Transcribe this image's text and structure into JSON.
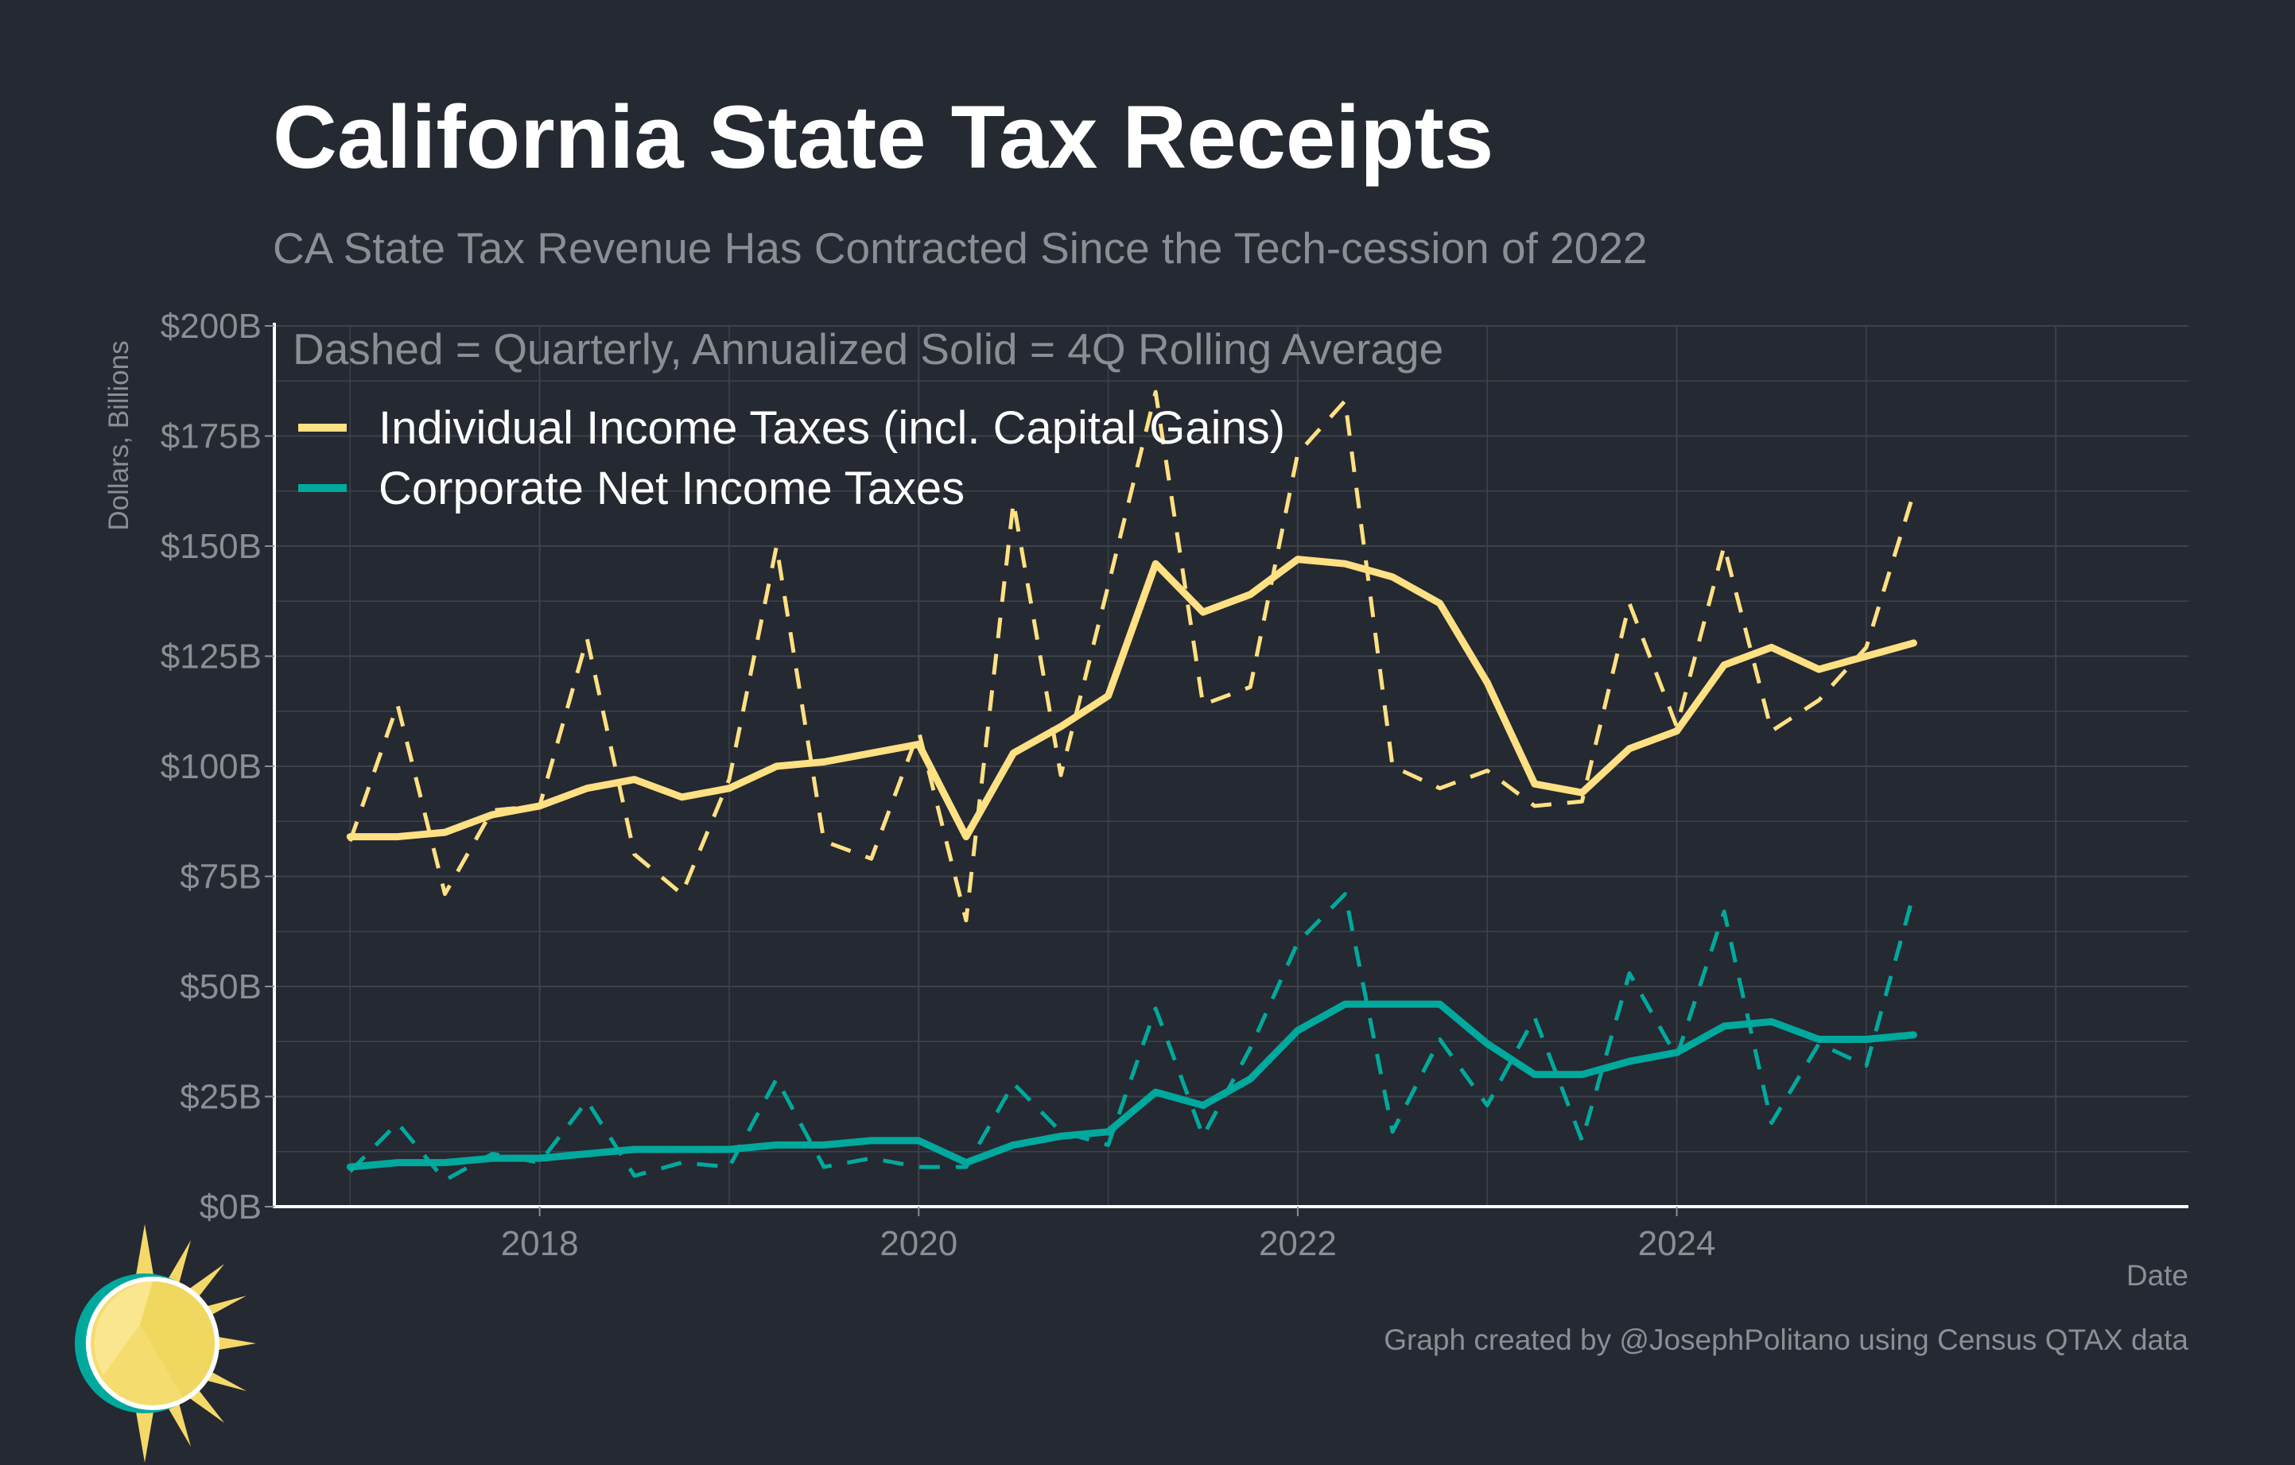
{
  "chart_data": {
    "type": "line",
    "title": "California State Tax Receipts",
    "subtitle": "CA State Tax Revenue Has Contracted Since the Tech-cession of 2022",
    "annotation": "Dashed = Quarterly, Annualized Solid = 4Q Rolling Average",
    "ylabel": "Dollars, Billions",
    "xlabel": "Date",
    "caption": "Graph created by @JosephPolitano using Census QTAX data",
    "ylim": [
      0,
      200
    ],
    "xlim": [
      2016.6,
      2026.7
    ],
    "y_ticks": [
      0,
      25,
      50,
      75,
      100,
      125,
      150,
      175,
      200
    ],
    "y_tick_labels": [
      "$0B",
      "$25B",
      "$50B",
      "$75B",
      "$100B",
      "$125B",
      "$150B",
      "$175B",
      "$200B"
    ],
    "x_ticks": [
      2018,
      2020,
      2022,
      2024
    ],
    "x_tick_labels": [
      "2018",
      "2020",
      "2022",
      "2024"
    ],
    "grid": true,
    "legend_position": "top-left",
    "x": [
      "2017 Q1",
      "2017 Q2",
      "2017 Q3",
      "2017 Q4",
      "2018 Q1",
      "2018 Q2",
      "2018 Q3",
      "2018 Q4",
      "2019 Q1",
      "2019 Q2",
      "2019 Q3",
      "2019 Q4",
      "2020 Q1",
      "2020 Q2",
      "2020 Q3",
      "2020 Q4",
      "2021 Q1",
      "2021 Q2",
      "2021 Q3",
      "2021 Q4",
      "2022 Q1",
      "2022 Q2",
      "2022 Q3",
      "2022 Q4",
      "2023 Q1",
      "2023 Q2",
      "2023 Q3",
      "2023 Q4",
      "2024 Q1",
      "2024 Q2",
      "2024 Q3",
      "2024 Q4",
      "2025 Q1",
      "2025 Q2"
    ],
    "series": [
      {
        "name": "Individual Income Taxes (incl. Capital Gains)",
        "color": "#FFE083",
        "quarterly": [
          83,
          114,
          71,
          90,
          91,
          129,
          80,
          71,
          97,
          150,
          83,
          79,
          108,
          65,
          160,
          98,
          141,
          185,
          114,
          118,
          171,
          183,
          100,
          95,
          99,
          91,
          92,
          137,
          109,
          150,
          108,
          115,
          127,
          162
        ],
        "rolling": [
          84,
          84,
          85,
          89,
          91,
          95,
          97,
          93,
          95,
          100,
          101,
          103,
          105,
          84,
          103,
          109,
          116,
          146,
          135,
          139,
          147,
          146,
          143,
          137,
          119,
          96,
          94,
          104,
          108,
          123,
          127,
          122,
          125,
          128
        ]
      },
      {
        "name": "Corporate Net Income Taxes",
        "color": "#00A99D",
        "quarterly": [
          8,
          19,
          6,
          12,
          10,
          24,
          7,
          10,
          9,
          29,
          9,
          11,
          9,
          9,
          28,
          17,
          14,
          45,
          16,
          36,
          60,
          71,
          17,
          38,
          23,
          43,
          15,
          53,
          34,
          67,
          19,
          37,
          32,
          71
        ],
        "rolling": [
          9,
          10,
          10,
          11,
          11,
          12,
          13,
          13,
          13,
          14,
          14,
          15,
          15,
          10,
          14,
          16,
          17,
          26,
          23,
          29,
          40,
          46,
          46,
          46,
          37,
          30,
          30,
          33,
          35,
          41,
          42,
          38,
          38,
          39
        ]
      }
    ]
  }
}
